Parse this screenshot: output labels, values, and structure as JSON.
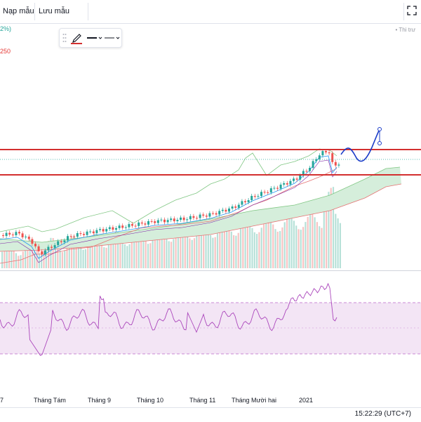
{
  "toolbar": {
    "load_template": "Nạp mẫu",
    "save_template": "Lưu mẫu"
  },
  "legend": {
    "pct": "2%)",
    "ma_value": "250",
    "right_label": "Thi trư"
  },
  "time_axis": {
    "labels": [
      "7",
      "Tháng Tám",
      "Tháng 9",
      "Tháng 10",
      "Tháng 11",
      "Tháng Mười hai",
      "2021"
    ]
  },
  "status": {
    "clock": "15:22:29 (UTC+7)"
  },
  "icons": {
    "fullscreen": "fullscreen-icon",
    "pencil": "pencil-icon"
  },
  "colors": {
    "up": "#26a69a",
    "down": "#ef5350",
    "level_line": "#d32f2f",
    "cloud": "#b8e0c4",
    "bb_upper": "#81c784",
    "bb_lower": "#e57373",
    "rsi_line": "#ab47bc",
    "rsi_band": "#f3e5f5",
    "projection": "#1a3cc8"
  }
}
